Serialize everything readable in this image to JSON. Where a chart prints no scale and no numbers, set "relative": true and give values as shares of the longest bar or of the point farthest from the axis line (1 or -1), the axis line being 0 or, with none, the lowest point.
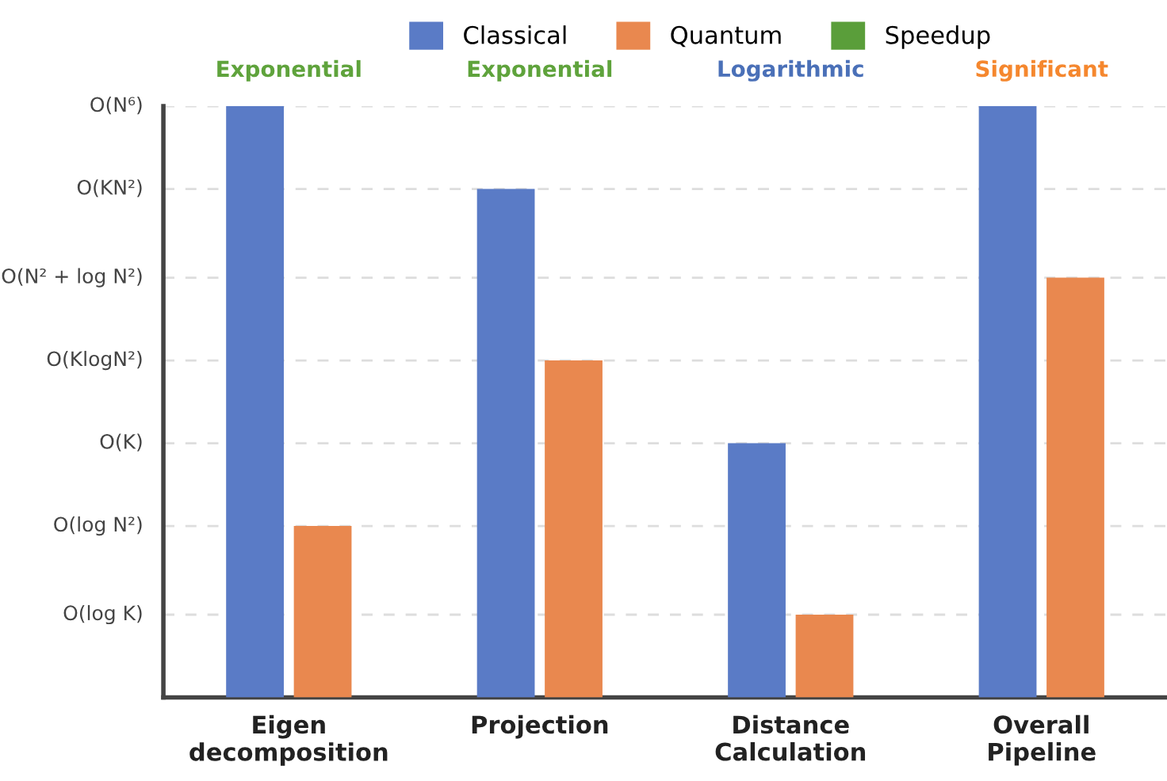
{
  "chart_data": {
    "type": "bar",
    "relative": true,
    "categories": [
      "Eigen\ndecomposition",
      "Projection",
      "Distance\nCalculation",
      "Overall\nPipeline"
    ],
    "series": [
      {
        "name": "Classical",
        "color": "#5a7bc6",
        "values": [
          1,
          0.86,
          0.43,
          1
        ]
      },
      {
        "name": "Quantum",
        "color": "#e9884f",
        "values": [
          0.29,
          0.57,
          0.14,
          0.71
        ]
      },
      {
        "name": "Speedup",
        "color": "#5a9e3a",
        "values": [
          null,
          null,
          null,
          null
        ]
      }
    ],
    "ref_lines": [
      {
        "axis": "y",
        "value": 0.14,
        "label": "O(log K)",
        "color": "#dddddd",
        "line_style": "dashed"
      },
      {
        "axis": "y",
        "value": 0.29,
        "label": "O(log N²)",
        "color": "#dddddd",
        "line_style": "dashed"
      },
      {
        "axis": "y",
        "value": 0.43,
        "label": "O(K)",
        "color": "#dddddd",
        "line_style": "dashed"
      },
      {
        "axis": "y",
        "value": 0.57,
        "label": "O(KlogN²)",
        "color": "#dddddd",
        "line_style": "dashed"
      },
      {
        "axis": "y",
        "value": 0.71,
        "label": "O(N² + log N²)",
        "color": "#dddddd",
        "line_style": "dashed"
      },
      {
        "axis": "y",
        "value": 0.86,
        "label": "O(KN²)",
        "color": "#dddddd",
        "line_style": "dashed"
      },
      {
        "axis": "y",
        "value": 1,
        "label": "O(N⁶)",
        "color": "#dddddd",
        "line_style": "dashed"
      }
    ],
    "annotations": [
      "Exponential",
      "Exponential",
      "Logarithmic",
      "Significant"
    ],
    "legend": "top"
  }
}
